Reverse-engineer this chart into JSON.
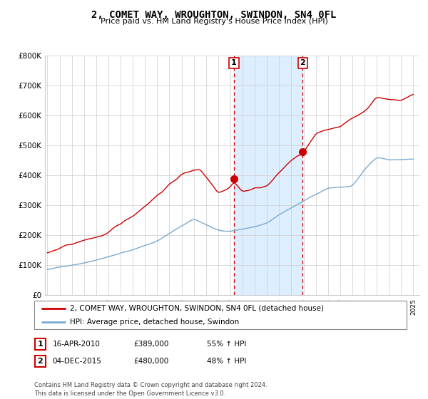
{
  "title": "2, COMET WAY, WROUGHTON, SWINDON, SN4 0FL",
  "subtitle": "Price paid vs. HM Land Registry's House Price Index (HPI)",
  "ylim": [
    0,
    800000
  ],
  "yticks": [
    0,
    100000,
    200000,
    300000,
    400000,
    500000,
    600000,
    700000,
    800000
  ],
  "ytick_labels": [
    "£0",
    "£100K",
    "£200K",
    "£300K",
    "£400K",
    "£500K",
    "£600K",
    "£700K",
    "£800K"
  ],
  "legend_line1": "2, COMET WAY, WROUGHTON, SWINDON, SN4 0FL (detached house)",
  "legend_line2": "HPI: Average price, detached house, Swindon",
  "transaction1_date": "16-APR-2010",
  "transaction1_price": "£389,000",
  "transaction1_hpi": "55% ↑ HPI",
  "transaction1_x": 2010.29,
  "transaction1_y": 389000,
  "transaction2_date": "04-DEC-2015",
  "transaction2_price": "£480,000",
  "transaction2_hpi": "48% ↑ HPI",
  "transaction2_x": 2015.92,
  "transaction2_y": 480000,
  "red_color": "#cc0000",
  "blue_color": "#7aaad0",
  "shaded_color": "#ddeeff",
  "grid_color": "#cccccc",
  "footer": "Contains HM Land Registry data © Crown copyright and database right 2024.\nThis data is licensed under the Open Government Licence v3.0.",
  "xlim_left": 1994.8,
  "xlim_right": 2025.5
}
